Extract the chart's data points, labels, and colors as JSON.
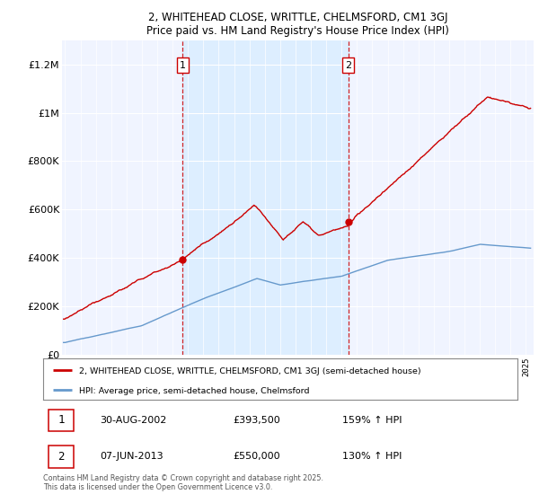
{
  "title": "2, WHITEHEAD CLOSE, WRITTLE, CHELMSFORD, CM1 3GJ",
  "subtitle": "Price paid vs. HM Land Registry's House Price Index (HPI)",
  "legend_property": "2, WHITEHEAD CLOSE, WRITTLE, CHELMSFORD, CM1 3GJ (semi-detached house)",
  "legend_hpi": "HPI: Average price, semi-detached house, Chelmsford",
  "footer": "Contains HM Land Registry data © Crown copyright and database right 2025.\nThis data is licensed under the Open Government Licence v3.0.",
  "transaction1_date": "30-AUG-2002",
  "transaction1_price": "£393,500",
  "transaction1_hpi": "159% ↑ HPI",
  "transaction2_date": "07-JUN-2013",
  "transaction2_price": "£550,000",
  "transaction2_hpi": "130% ↑ HPI",
  "ylim": [
    0,
    1300000
  ],
  "xlim_start": 1994.8,
  "xlim_end": 2025.5,
  "property_color": "#cc0000",
  "hpi_color": "#6699cc",
  "shade_color": "#ddeeff",
  "vline_color": "#cc0000",
  "marker1_x": 2002.66,
  "marker2_x": 2013.43,
  "marker1_y": 393500,
  "marker2_y": 550000,
  "bg_color": "#f0f4ff",
  "grid_color": "#ffffff"
}
